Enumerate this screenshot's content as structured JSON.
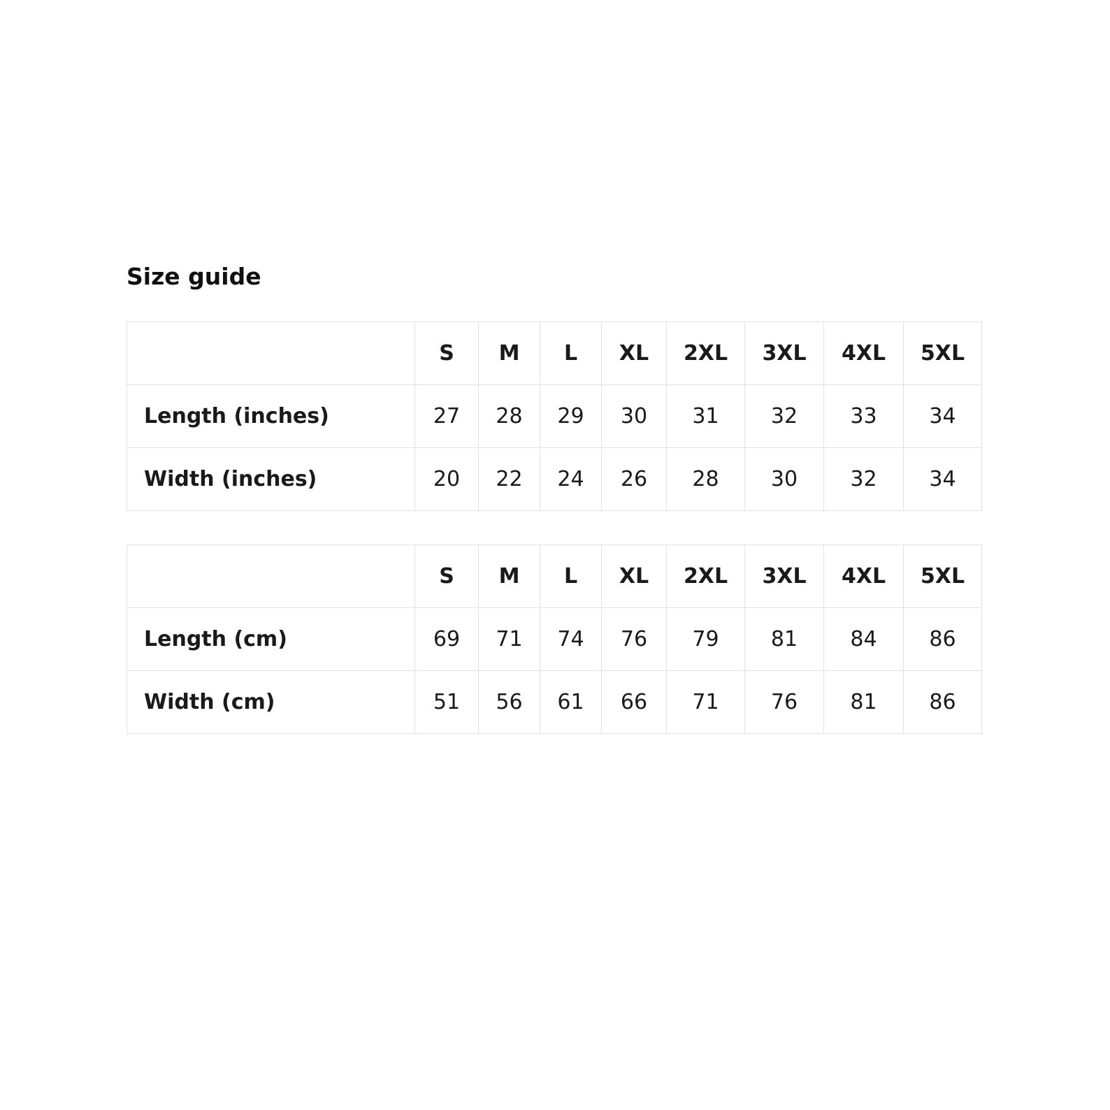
{
  "page": {
    "title": "Size guide"
  },
  "colors": {
    "text": "#1a1a1a",
    "title_text": "#111111",
    "border": "#e1e1e1",
    "background": "#ffffff"
  },
  "tables": [
    {
      "unit": "inches",
      "corner": "",
      "columns": [
        "S",
        "M",
        "L",
        "XL",
        "2XL",
        "3XL",
        "4XL",
        "5XL"
      ],
      "rows": [
        {
          "label": "Length (inches)",
          "values": [
            "27",
            "28",
            "29",
            "30",
            "31",
            "32",
            "33",
            "34"
          ]
        },
        {
          "label": "Width (inches)",
          "values": [
            "20",
            "22",
            "24",
            "26",
            "28",
            "30",
            "32",
            "34"
          ]
        }
      ]
    },
    {
      "unit": "cm",
      "corner": "",
      "columns": [
        "S",
        "M",
        "L",
        "XL",
        "2XL",
        "3XL",
        "4XL",
        "5XL"
      ],
      "rows": [
        {
          "label": "Length (cm)",
          "values": [
            "69",
            "71",
            "74",
            "76",
            "79",
            "81",
            "84",
            "86"
          ]
        },
        {
          "label": "Width (cm)",
          "values": [
            "51",
            "56",
            "61",
            "66",
            "71",
            "76",
            "81",
            "86"
          ]
        }
      ]
    }
  ],
  "chart_data": [
    {
      "type": "table",
      "title": "Size guide",
      "columns": [
        "",
        "S",
        "M",
        "L",
        "XL",
        "2XL",
        "3XL",
        "4XL",
        "5XL"
      ],
      "rows": [
        [
          "Length (inches)",
          27,
          28,
          29,
          30,
          31,
          32,
          33,
          34
        ],
        [
          "Width (inches)",
          20,
          22,
          24,
          26,
          28,
          30,
          32,
          34
        ]
      ]
    },
    {
      "type": "table",
      "title": "",
      "columns": [
        "",
        "S",
        "M",
        "L",
        "XL",
        "2XL",
        "3XL",
        "4XL",
        "5XL"
      ],
      "rows": [
        [
          "Length (cm)",
          69,
          71,
          74,
          76,
          79,
          81,
          84,
          86
        ],
        [
          "Width (cm)",
          51,
          56,
          61,
          66,
          71,
          76,
          81,
          86
        ]
      ]
    }
  ]
}
